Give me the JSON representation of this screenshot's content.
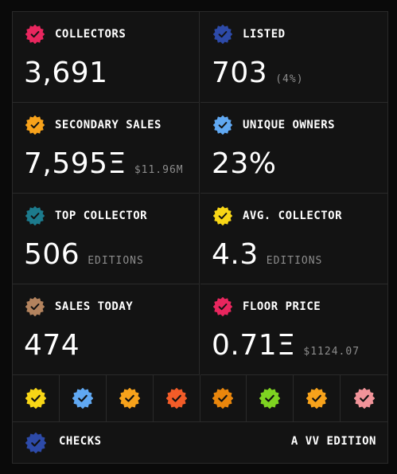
{
  "stats": [
    {
      "label": "COLLECTORS",
      "value": "3,691",
      "sub": "",
      "color": "#e8265e"
    },
    {
      "label": "LISTED",
      "value": "703",
      "sub": "(4%)",
      "color": "#2d4aa8"
    },
    {
      "label": "SECONDARY SALES",
      "value": "7,595Ξ",
      "sub": "$11.96M",
      "color": "#f7a21b"
    },
    {
      "label": "UNIQUE OWNERS",
      "value": "23%",
      "sub": "",
      "color": "#60a8f2"
    },
    {
      "label": "TOP COLLECTOR",
      "value": "506",
      "sub": "EDITIONS",
      "color": "#1c7a8c"
    },
    {
      "label": "AVG. COLLECTOR",
      "value": "4.3",
      "sub": "EDITIONS",
      "color": "#f8d616"
    },
    {
      "label": "SALES TODAY",
      "value": "474",
      "sub": "",
      "color": "#b3835e"
    },
    {
      "label": "FLOOR PRICE",
      "value": "0.71Ξ",
      "sub": "$1124.07",
      "color": "#e8265e"
    }
  ],
  "checks": [
    {
      "color": "#f8d616",
      "icon": "check-badge-icon"
    },
    {
      "color": "#60a8f2",
      "icon": "check-badge-icon"
    },
    {
      "color": "#f7a21b",
      "icon": "check-badge-icon"
    },
    {
      "color": "#f25c28",
      "icon": "check-badge-icon"
    },
    {
      "color": "#e9860c",
      "icon": "check-badge-icon"
    },
    {
      "color": "#7ed321",
      "icon": "check-badge-icon"
    },
    {
      "color": "#f7a21b",
      "icon": "check-badge-icon"
    },
    {
      "color": "#f09399",
      "icon": "check-badge-icon"
    }
  ],
  "footer": {
    "title": "CHECKS",
    "edition": "A VV EDITION",
    "color": "#2d4aa8"
  }
}
